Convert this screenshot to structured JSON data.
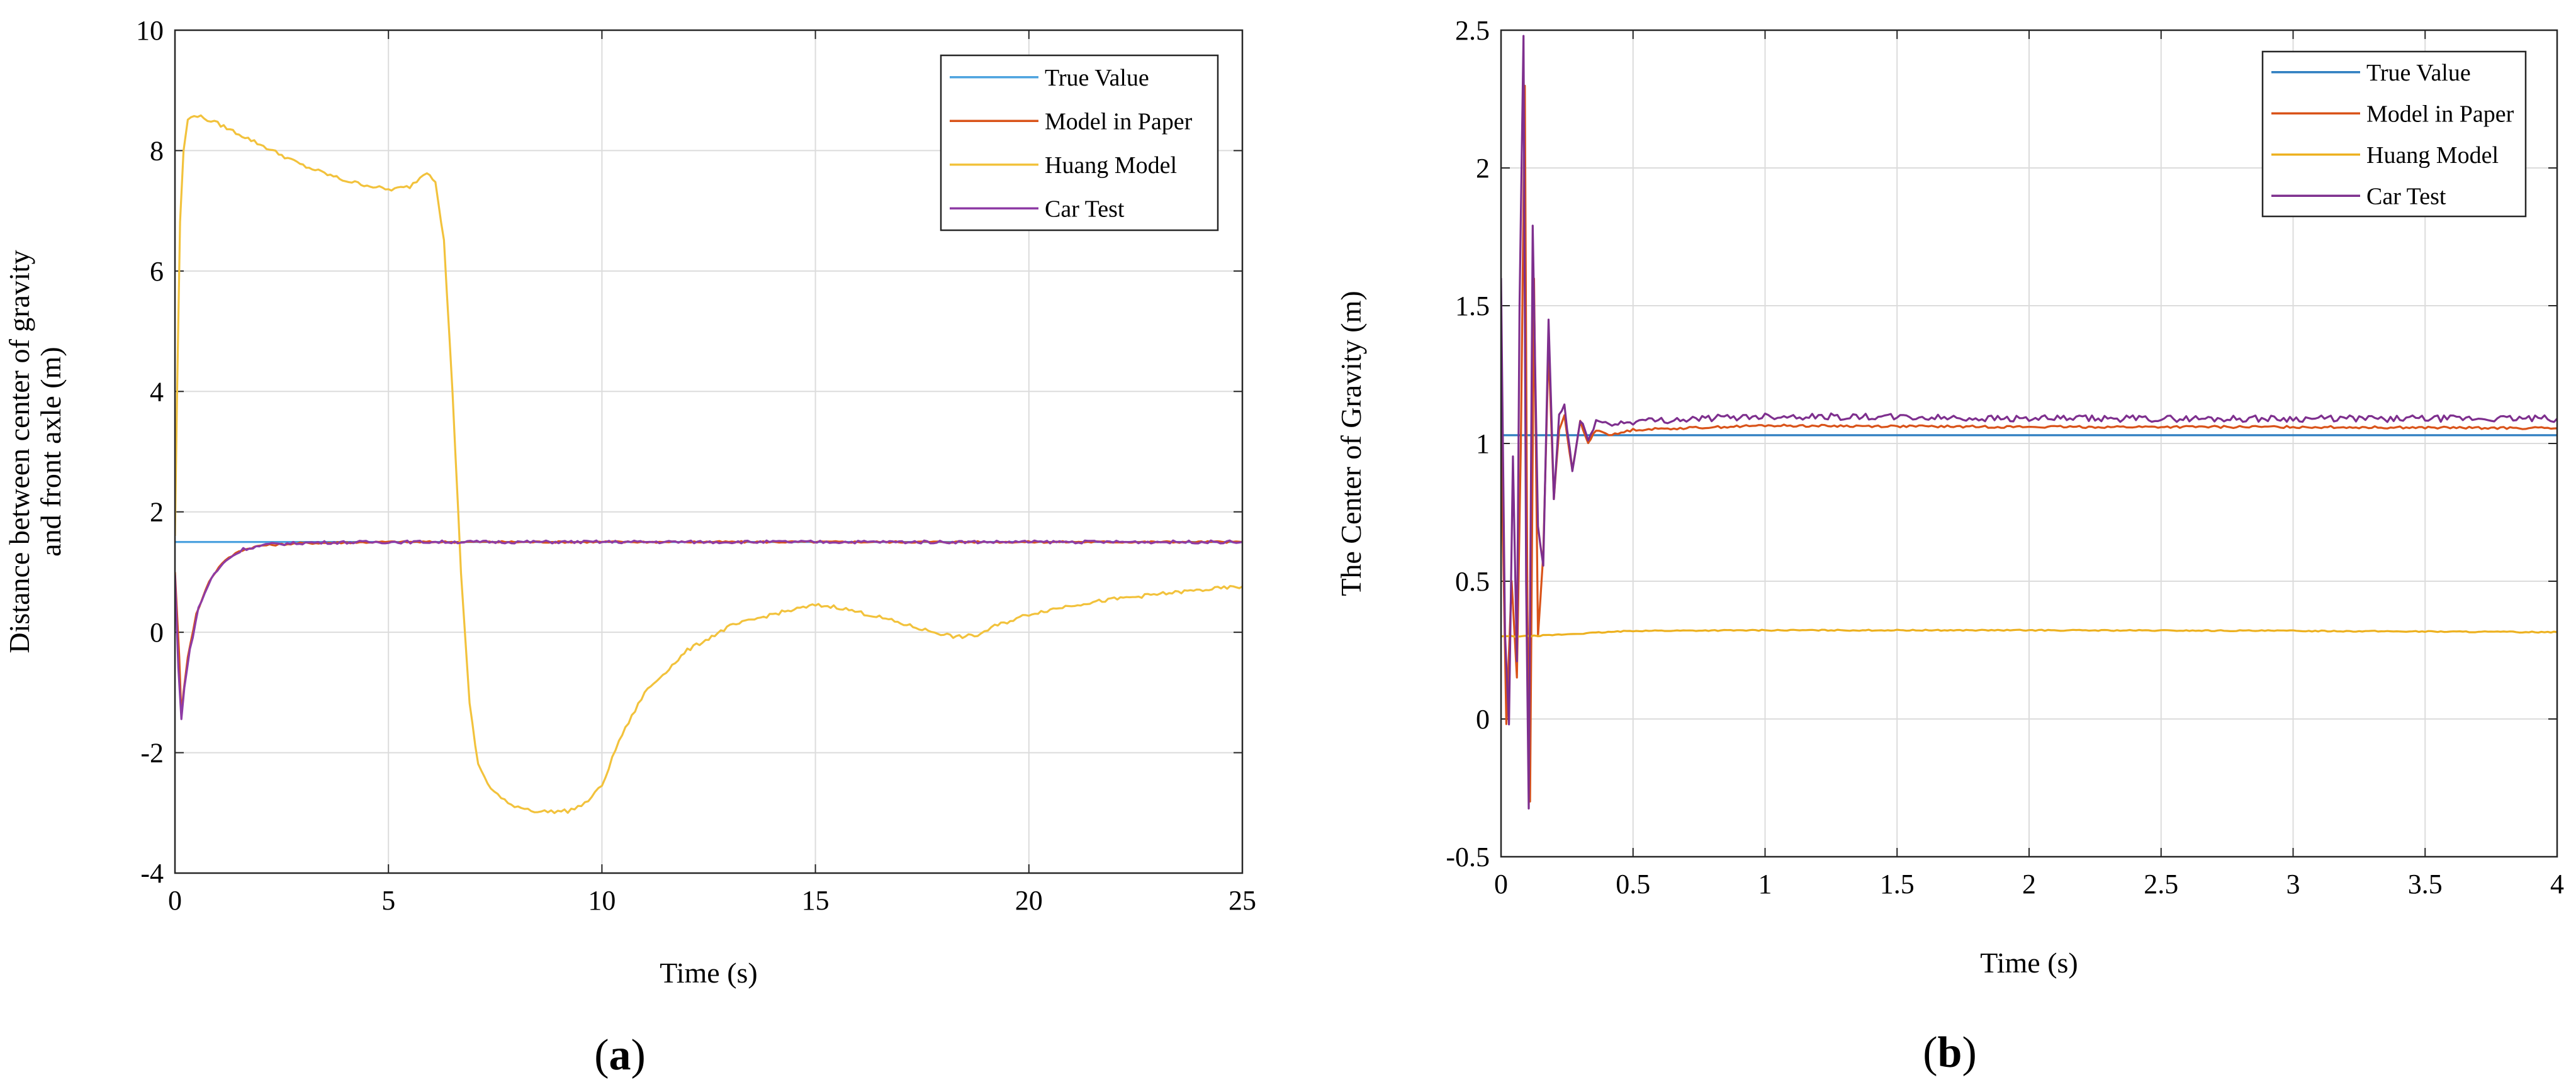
{
  "chart_data": [
    {
      "type": "line",
      "panel_label": "a",
      "title": "",
      "xlabel": "Time (s)",
      "ylabel_line1": "Distance between center of gravity",
      "ylabel_line2": "and front axle (m)",
      "xlim": [
        0,
        25
      ],
      "ylim": [
        -4,
        10
      ],
      "xticks": [
        0,
        5,
        10,
        15,
        20,
        25
      ],
      "yticks": [
        -4,
        -2,
        0,
        2,
        4,
        6,
        8,
        10
      ],
      "grid": true,
      "legend_position": "top-right",
      "series": [
        {
          "name": "True Value",
          "color": "#4da3df",
          "noise": 0,
          "points": [
            [
              0,
              1.5
            ],
            [
              25,
              1.5
            ]
          ]
        },
        {
          "name": "Model in Paper",
          "color": "#d95319",
          "noise": 0.015,
          "points": [
            [
              0,
              1.0
            ],
            [
              0.1,
              -0.4
            ],
            [
              0.15,
              -1.4
            ],
            [
              0.2,
              -1.0
            ],
            [
              0.3,
              -0.4
            ],
            [
              0.5,
              0.3
            ],
            [
              0.8,
              0.85
            ],
            [
              1.1,
              1.15
            ],
            [
              1.5,
              1.35
            ],
            [
              2.0,
              1.44
            ],
            [
              3.0,
              1.48
            ],
            [
              5.0,
              1.5
            ],
            [
              25,
              1.5
            ]
          ]
        },
        {
          "name": "Huang Model",
          "color": "#f2c23c",
          "noise": 0.03,
          "points": [
            [
              0,
              1.6
            ],
            [
              0.05,
              4.0
            ],
            [
              0.12,
              6.8
            ],
            [
              0.2,
              8.0
            ],
            [
              0.3,
              8.5
            ],
            [
              0.45,
              8.6
            ],
            [
              1.0,
              8.45
            ],
            [
              2.0,
              8.1
            ],
            [
              3.0,
              7.75
            ],
            [
              4.0,
              7.5
            ],
            [
              5.0,
              7.35
            ],
            [
              5.5,
              7.4
            ],
            [
              5.9,
              7.65
            ],
            [
              6.1,
              7.5
            ],
            [
              6.3,
              6.5
            ],
            [
              6.5,
              4.0
            ],
            [
              6.7,
              1.0
            ],
            [
              6.9,
              -1.2
            ],
            [
              7.1,
              -2.2
            ],
            [
              7.4,
              -2.6
            ],
            [
              7.8,
              -2.85
            ],
            [
              8.5,
              -2.98
            ],
            [
              9.2,
              -2.97
            ],
            [
              9.6,
              -2.85
            ],
            [
              10.0,
              -2.55
            ],
            [
              10.4,
              -1.8
            ],
            [
              11.0,
              -1.0
            ],
            [
              12.0,
              -0.3
            ],
            [
              13.0,
              0.1
            ],
            [
              14.0,
              0.3
            ],
            [
              15.0,
              0.45
            ],
            [
              15.5,
              0.42
            ],
            [
              16.5,
              0.25
            ],
            [
              17.5,
              0.05
            ],
            [
              18.3,
              -0.08
            ],
            [
              18.8,
              -0.05
            ],
            [
              19.2,
              0.1
            ],
            [
              20.0,
              0.3
            ],
            [
              21.0,
              0.45
            ],
            [
              22.0,
              0.55
            ],
            [
              23.0,
              0.63
            ],
            [
              24.0,
              0.7
            ],
            [
              25.0,
              0.76
            ]
          ]
        },
        {
          "name": "Car Test",
          "color": "#8e3ba5",
          "noise": 0.025,
          "points": [
            [
              0,
              0.95
            ],
            [
              0.08,
              -0.6
            ],
            [
              0.15,
              -1.45
            ],
            [
              0.22,
              -0.9
            ],
            [
              0.35,
              -0.3
            ],
            [
              0.55,
              0.4
            ],
            [
              0.85,
              0.9
            ],
            [
              1.2,
              1.2
            ],
            [
              1.6,
              1.38
            ],
            [
              2.2,
              1.46
            ],
            [
              3.2,
              1.49
            ],
            [
              5.0,
              1.5
            ],
            [
              25,
              1.5
            ]
          ]
        }
      ]
    },
    {
      "type": "line",
      "panel_label": "b",
      "title": "",
      "xlabel": "Time (s)",
      "ylabel": "The Center of Gravity (m)",
      "xlim": [
        0,
        4
      ],
      "ylim": [
        -0.5,
        2.5
      ],
      "xticks": [
        0,
        0.5,
        1,
        1.5,
        2,
        2.5,
        3,
        3.5,
        4
      ],
      "yticks": [
        -0.5,
        0,
        0.5,
        1,
        1.5,
        2,
        2.5
      ],
      "grid": true,
      "legend_position": "top-right",
      "series": [
        {
          "name": "True Value",
          "color": "#2f7fc1",
          "noise": 0,
          "points": [
            [
              0,
              1.03
            ],
            [
              4,
              1.03
            ]
          ]
        },
        {
          "name": "Model in Paper",
          "color": "#d95319",
          "noise": 0.004,
          "points": [
            [
              0,
              1.05
            ],
            [
              0.02,
              -0.02
            ],
            [
              0.04,
              0.5
            ],
            [
              0.06,
              0.15
            ],
            [
              0.075,
              1.0
            ],
            [
              0.09,
              2.3
            ],
            [
              0.1,
              0.4
            ],
            [
              0.11,
              -0.3
            ],
            [
              0.125,
              1.6
            ],
            [
              0.14,
              0.3
            ],
            [
              0.16,
              0.6
            ],
            [
              0.18,
              1.35
            ],
            [
              0.2,
              0.8
            ],
            [
              0.22,
              1.05
            ],
            [
              0.24,
              1.1
            ],
            [
              0.27,
              0.9
            ],
            [
              0.3,
              1.08
            ],
            [
              0.33,
              1.0
            ],
            [
              0.36,
              1.05
            ],
            [
              0.42,
              1.03
            ],
            [
              0.5,
              1.05
            ],
            [
              1.0,
              1.065
            ],
            [
              2.0,
              1.06
            ],
            [
              3.0,
              1.06
            ],
            [
              4.0,
              1.055
            ]
          ]
        },
        {
          "name": "Huang Model",
          "color": "#edb120",
          "noise": 0.002,
          "points": [
            [
              0,
              0.3
            ],
            [
              0.1,
              0.3
            ],
            [
              0.3,
              0.31
            ],
            [
              0.5,
              0.32
            ],
            [
              1.0,
              0.322
            ],
            [
              2.0,
              0.322
            ],
            [
              3.0,
              0.32
            ],
            [
              4.0,
              0.315
            ]
          ]
        },
        {
          "name": "Car Test",
          "color": "#7e2f8e",
          "noise": 0.012,
          "points": [
            [
              0,
              1.6
            ],
            [
              0.015,
              0.3
            ],
            [
              0.03,
              -0.02
            ],
            [
              0.045,
              0.95
            ],
            [
              0.06,
              0.2
            ],
            [
              0.07,
              1.5
            ],
            [
              0.085,
              2.48
            ],
            [
              0.095,
              0.5
            ],
            [
              0.105,
              -0.33
            ],
            [
              0.12,
              1.78
            ],
            [
              0.14,
              0.7
            ],
            [
              0.16,
              0.55
            ],
            [
              0.18,
              1.45
            ],
            [
              0.2,
              0.8
            ],
            [
              0.22,
              1.1
            ],
            [
              0.24,
              1.14
            ],
            [
              0.27,
              0.9
            ],
            [
              0.3,
              1.08
            ],
            [
              0.33,
              1.02
            ],
            [
              0.36,
              1.08
            ],
            [
              0.42,
              1.07
            ],
            [
              0.5,
              1.08
            ],
            [
              1.0,
              1.1
            ],
            [
              2.0,
              1.09
            ],
            [
              3.0,
              1.09
            ],
            [
              4.0,
              1.09
            ]
          ]
        }
      ]
    }
  ]
}
